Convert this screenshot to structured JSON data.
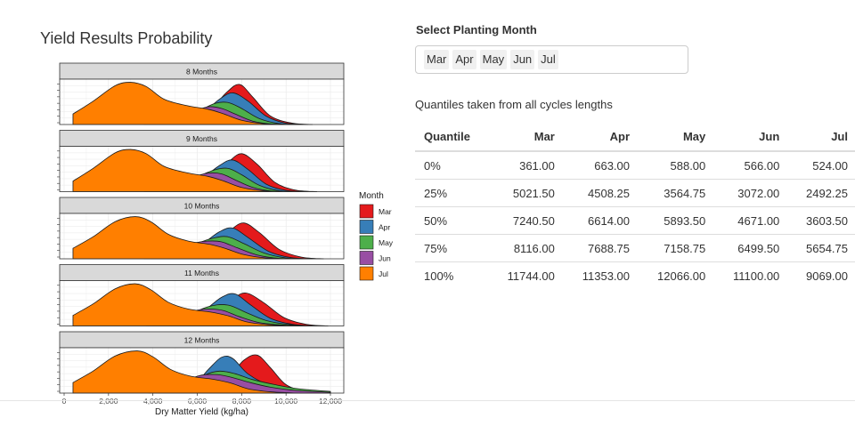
{
  "page": {
    "title": "Yield Results Probability"
  },
  "selector": {
    "label": "Select Planting Month",
    "selected": [
      "Mar",
      "Apr",
      "May",
      "Jun",
      "Jul"
    ]
  },
  "quantile_table": {
    "caption": "Quantiles taken from all cycles lengths",
    "headers": [
      "Quantile",
      "Mar",
      "Apr",
      "May",
      "Jun",
      "Jul"
    ],
    "rows": [
      [
        "0%",
        "361.00",
        "663.00",
        "588.00",
        "566.00",
        "524.00"
      ],
      [
        "25%",
        "5021.50",
        "4508.25",
        "3564.75",
        "3072.00",
        "2492.25"
      ],
      [
        "50%",
        "7240.50",
        "6614.00",
        "5893.50",
        "4671.00",
        "3603.50"
      ],
      [
        "75%",
        "8116.00",
        "7688.75",
        "7158.75",
        "6499.50",
        "5654.75"
      ],
      [
        "100%",
        "11744.00",
        "11353.00",
        "12066.00",
        "11100.00",
        "9069.00"
      ]
    ]
  },
  "chart_data": {
    "type": "area",
    "subtype": "density ridgeline",
    "xlabel": "Dry Matter Yield (kg/ha)",
    "xlim": [
      0,
      12000
    ],
    "x_ticks": [
      0,
      2000,
      4000,
      6000,
      8000,
      10000,
      12000
    ],
    "x_tick_labels": [
      "0",
      "2,000",
      "4,000",
      "6,000",
      "8,000",
      "10,000",
      "12,000"
    ],
    "legend": {
      "title": "Month",
      "placement": "right",
      "items": [
        {
          "name": "Mar",
          "color": "#e41a1c"
        },
        {
          "name": "Apr",
          "color": "#377eb8"
        },
        {
          "name": "May",
          "color": "#4daf4a"
        },
        {
          "name": "Jun",
          "color": "#984ea3"
        },
        {
          "name": "Jul",
          "color": "#ff7f00"
        }
      ]
    },
    "grid": true,
    "panels": [
      {
        "title": "8 Months",
        "series": [
          {
            "name": "Mar",
            "x": [
              4200,
              5500,
              6500,
              7300,
              7900,
              8500,
              9300,
              10300,
              11200
            ],
            "y": [
              0.0,
              0.05,
              0.3,
              0.75,
              0.95,
              0.65,
              0.2,
              0.03,
              0.0
            ]
          },
          {
            "name": "Apr",
            "x": [
              4000,
              5300,
              6300,
              7000,
              7600,
              8300,
              9100,
              10000,
              11000
            ],
            "y": [
              0.0,
              0.05,
              0.3,
              0.6,
              0.75,
              0.55,
              0.2,
              0.03,
              0.0
            ]
          },
          {
            "name": "May",
            "x": [
              3800,
              5000,
              6000,
              6800,
              7400,
              8000,
              8800,
              9700,
              10600
            ],
            "y": [
              0.0,
              0.05,
              0.3,
              0.5,
              0.52,
              0.38,
              0.14,
              0.02,
              0.0
            ]
          },
          {
            "name": "Jun",
            "x": [
              3600,
              4800,
              5800,
              6500,
              7100,
              7700,
              8500,
              9400,
              10300
            ],
            "y": [
              0.0,
              0.07,
              0.3,
              0.42,
              0.38,
              0.25,
              0.08,
              0.01,
              0.0
            ]
          },
          {
            "name": "Jul",
            "x": [
              400,
              1300,
              2300,
              3000,
              3700,
              4500,
              5500,
              6500,
              7200,
              8000,
              9000,
              10200
            ],
            "y": [
              0.25,
              0.55,
              0.92,
              1.0,
              0.9,
              0.6,
              0.45,
              0.36,
              0.25,
              0.1,
              0.02,
              0.0
            ]
          }
        ]
      },
      {
        "title": "9 Months",
        "series": [
          {
            "name": "Mar",
            "x": [
              4300,
              5600,
              6600,
              7400,
              8000,
              8700,
              9500,
              10400,
              11400
            ],
            "y": [
              0.0,
              0.05,
              0.3,
              0.7,
              0.9,
              0.65,
              0.22,
              0.04,
              0.0
            ]
          },
          {
            "name": "Apr",
            "x": [
              4000,
              5300,
              6300,
              7000,
              7600,
              8300,
              9100,
              10000,
              11000
            ],
            "y": [
              0.0,
              0.07,
              0.35,
              0.62,
              0.75,
              0.52,
              0.18,
              0.03,
              0.0
            ]
          },
          {
            "name": "May",
            "x": [
              3800,
              5000,
              6000,
              6800,
              7400,
              8000,
              8800,
              9700,
              10700
            ],
            "y": [
              0.0,
              0.08,
              0.35,
              0.52,
              0.55,
              0.4,
              0.15,
              0.02,
              0.0
            ]
          },
          {
            "name": "Jun",
            "x": [
              3600,
              4800,
              5800,
              6500,
              7100,
              7700,
              8500,
              9400,
              10400
            ],
            "y": [
              0.0,
              0.1,
              0.34,
              0.44,
              0.42,
              0.28,
              0.1,
              0.01,
              0.0
            ]
          },
          {
            "name": "Jul",
            "x": [
              400,
              1300,
              2300,
              3000,
              3700,
              4500,
              5500,
              6500,
              7200,
              8000,
              9000,
              10200
            ],
            "y": [
              0.25,
              0.55,
              0.92,
              1.0,
              0.9,
              0.6,
              0.45,
              0.36,
              0.25,
              0.1,
              0.02,
              0.0
            ]
          }
        ]
      },
      {
        "title": "10 Months",
        "series": [
          {
            "name": "Mar",
            "x": [
              4400,
              5700,
              6700,
              7500,
              8100,
              8800,
              9700,
              10700,
              11700
            ],
            "y": [
              0.0,
              0.05,
              0.3,
              0.68,
              0.85,
              0.62,
              0.22,
              0.04,
              0.0
            ]
          },
          {
            "name": "Apr",
            "x": [
              4100,
              5400,
              6300,
              7000,
              7600,
              8300,
              9200,
              10200,
              11200
            ],
            "y": [
              0.0,
              0.08,
              0.38,
              0.64,
              0.73,
              0.5,
              0.18,
              0.03,
              0.0
            ]
          },
          {
            "name": "May",
            "x": [
              3900,
              5100,
              6000,
              6800,
              7400,
              8100,
              9000,
              10000,
              11000
            ],
            "y": [
              0.0,
              0.1,
              0.36,
              0.5,
              0.52,
              0.36,
              0.14,
              0.02,
              0.0
            ]
          },
          {
            "name": "Jun",
            "x": [
              3600,
              4800,
              5800,
              6500,
              7100,
              7800,
              8700,
              9700,
              10700
            ],
            "y": [
              0.0,
              0.12,
              0.36,
              0.42,
              0.4,
              0.26,
              0.09,
              0.01,
              0.0
            ]
          },
          {
            "name": "Jul",
            "x": [
              400,
              1300,
              2300,
              3200,
              3900,
              4700,
              5600,
              6600,
              7300,
              8100,
              9100,
              10300
            ],
            "y": [
              0.25,
              0.52,
              0.88,
              1.0,
              0.88,
              0.58,
              0.42,
              0.34,
              0.24,
              0.1,
              0.02,
              0.0
            ]
          }
        ]
      },
      {
        "title": "11 Months",
        "series": [
          {
            "name": "Mar",
            "x": [
              4500,
              5800,
              6800,
              7600,
              8200,
              9000,
              9900,
              10900,
              11900
            ],
            "y": [
              0.0,
              0.05,
              0.3,
              0.64,
              0.78,
              0.55,
              0.2,
              0.04,
              0.0
            ]
          },
          {
            "name": "Apr",
            "x": [
              4200,
              5500,
              6400,
              7100,
              7700,
              8400,
              9300,
              10300,
              11400
            ],
            "y": [
              0.0,
              0.08,
              0.4,
              0.68,
              0.76,
              0.5,
              0.18,
              0.04,
              0.0
            ]
          },
          {
            "name": "May",
            "x": [
              4000,
              5200,
              6100,
              6900,
              7500,
              8200,
              9100,
              10200,
              11300
            ],
            "y": [
              0.0,
              0.1,
              0.38,
              0.5,
              0.48,
              0.32,
              0.13,
              0.03,
              0.0
            ]
          },
          {
            "name": "Jun",
            "x": [
              3700,
              4900,
              5900,
              6600,
              7200,
              7900,
              8800,
              9900,
              11000
            ],
            "y": [
              0.0,
              0.12,
              0.36,
              0.4,
              0.36,
              0.22,
              0.08,
              0.02,
              0.0
            ]
          },
          {
            "name": "Jul",
            "x": [
              400,
              1300,
              2300,
              3200,
              3900,
              4700,
              5600,
              6600,
              7400,
              8200,
              9200,
              10500
            ],
            "y": [
              0.25,
              0.52,
              0.88,
              1.0,
              0.86,
              0.56,
              0.4,
              0.33,
              0.24,
              0.1,
              0.03,
              0.0
            ]
          }
        ]
      },
      {
        "title": "12 Months",
        "series": [
          {
            "name": "Mar",
            "x": [
              5200,
              6400,
              7400,
              8100,
              8700,
              9300,
              10000,
              10900,
              12000
            ],
            "y": [
              0.0,
              0.08,
              0.38,
              0.78,
              0.9,
              0.6,
              0.2,
              0.04,
              0.0
            ]
          },
          {
            "name": "Apr",
            "x": [
              4600,
              5700,
              6500,
              7100,
              7600,
              8300,
              9300,
              10500,
              12000
            ],
            "y": [
              0.0,
              0.12,
              0.56,
              0.85,
              0.82,
              0.45,
              0.18,
              0.06,
              0.01
            ]
          },
          {
            "name": "May",
            "x": [
              4200,
              5400,
              6300,
              7000,
              7700,
              8500,
              9500,
              10600,
              12000
            ],
            "y": [
              0.0,
              0.12,
              0.42,
              0.52,
              0.46,
              0.32,
              0.2,
              0.1,
              0.04
            ]
          },
          {
            "name": "Jun",
            "x": [
              3800,
              5000,
              6000,
              6800,
              7500,
              8300,
              9300,
              10500,
              12000
            ],
            "y": [
              0.0,
              0.14,
              0.4,
              0.44,
              0.38,
              0.26,
              0.14,
              0.06,
              0.02
            ]
          },
          {
            "name": "Jul",
            "x": [
              400,
              1300,
              2300,
              3300,
              4000,
              4800,
              5700,
              6700,
              7500,
              8300,
              9300,
              10500
            ],
            "y": [
              0.25,
              0.52,
              0.88,
              1.0,
              0.86,
              0.56,
              0.4,
              0.33,
              0.24,
              0.1,
              0.03,
              0.0
            ]
          }
        ]
      }
    ]
  }
}
